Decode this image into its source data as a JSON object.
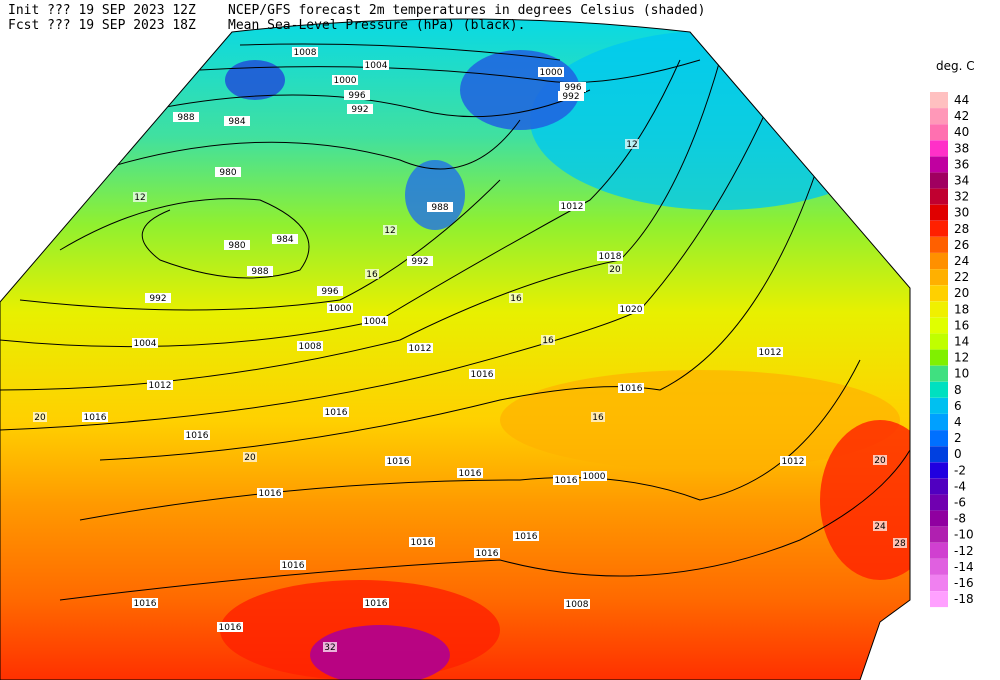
{
  "header": {
    "init": "Init  ??? 19 SEP 2023 12Z",
    "fcst": "Fcst ??? 19 SEP 2023 18Z",
    "title_line1": "NCEP/GFS forecast 2m temperatures in degrees Celsius (shaded)",
    "title_line2": "Mean Sea-Level Pressure (hPa) (black)."
  },
  "legend": {
    "title": "deg. C",
    "items": [
      {
        "value": 44,
        "color": "#ffc0c0"
      },
      {
        "value": 42,
        "color": "#ff98b8"
      },
      {
        "value": 40,
        "color": "#ff70b0"
      },
      {
        "value": 38,
        "color": "#ff30c8"
      },
      {
        "value": 36,
        "color": "#c000a0"
      },
      {
        "value": 34,
        "color": "#a00060"
      },
      {
        "value": 32,
        "color": "#c00030"
      },
      {
        "value": 30,
        "color": "#e00000"
      },
      {
        "value": 28,
        "color": "#ff2000"
      },
      {
        "value": 26,
        "color": "#ff6000"
      },
      {
        "value": 24,
        "color": "#ff9000"
      },
      {
        "value": 22,
        "color": "#ffb000"
      },
      {
        "value": 20,
        "color": "#ffd000"
      },
      {
        "value": 18,
        "color": "#f0f000"
      },
      {
        "value": 16,
        "color": "#e0ff00"
      },
      {
        "value": 14,
        "color": "#c0ff00"
      },
      {
        "value": 12,
        "color": "#80f000"
      },
      {
        "value": 10,
        "color": "#40e080"
      },
      {
        "value": 8,
        "color": "#00e0c0"
      },
      {
        "value": 6,
        "color": "#00c0f0"
      },
      {
        "value": 4,
        "color": "#00a0ff"
      },
      {
        "value": 2,
        "color": "#0070ff"
      },
      {
        "value": 0,
        "color": "#0040e0"
      },
      {
        "value": -2,
        "color": "#2000e0"
      },
      {
        "value": -4,
        "color": "#5000c0"
      },
      {
        "value": -6,
        "color": "#7000b0"
      },
      {
        "value": -8,
        "color": "#9000a0"
      },
      {
        "value": -10,
        "color": "#b020b0"
      },
      {
        "value": -12,
        "color": "#d040d0"
      },
      {
        "value": -14,
        "color": "#e060e0"
      },
      {
        "value": -16,
        "color": "#f080f0"
      },
      {
        "value": -18,
        "color": "#ffa0ff"
      }
    ]
  },
  "isobar_labels": [
    1008,
    1004,
    1000,
    996,
    992,
    988,
    984,
    980,
    980,
    984,
    988,
    992,
    1004,
    1012,
    1016,
    1016,
    1000,
    996,
    992,
    988,
    992,
    996,
    1000,
    1004,
    1008,
    1012,
    1016,
    1016,
    1016,
    1016,
    1016,
    1016,
    1016,
    1016,
    1016,
    1016,
    1016,
    1016,
    1016,
    1000,
    1008,
    1012,
    1018,
    1020,
    1016,
    1012,
    1012
  ],
  "temperature_labels": [
    12,
    12,
    16,
    12,
    16,
    20,
    20,
    16,
    16,
    20,
    20,
    24,
    28,
    32
  ]
}
